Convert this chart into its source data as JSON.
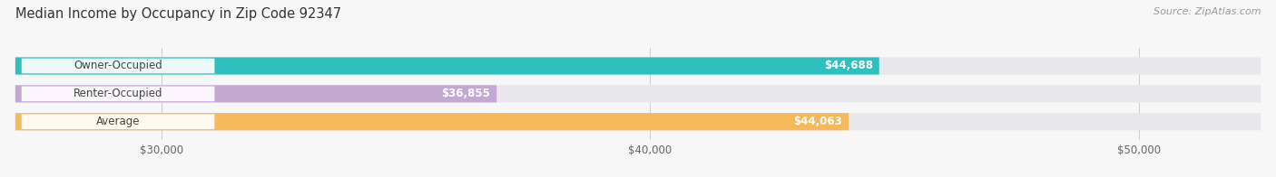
{
  "title": "Median Income by Occupancy in Zip Code 92347",
  "source": "Source: ZipAtlas.com",
  "categories": [
    "Owner-Occupied",
    "Renter-Occupied",
    "Average"
  ],
  "values": [
    44688,
    36855,
    44063
  ],
  "bar_colors": [
    "#2ebfbf",
    "#c4a8d4",
    "#f5b85a"
  ],
  "bar_bg_color": "#e8e8ec",
  "value_labels": [
    "$44,688",
    "$36,855",
    "$44,063"
  ],
  "xlim_min": 27000,
  "xlim_max": 52500,
  "xticks": [
    30000,
    40000,
    50000
  ],
  "xtick_labels": [
    "$30,000",
    "$40,000",
    "$50,000"
  ],
  "title_fontsize": 10.5,
  "source_fontsize": 8,
  "label_fontsize": 8.5,
  "value_fontsize": 8.5,
  "cat_fontsize": 8.5,
  "bar_height": 0.62,
  "figsize": [
    14.06,
    1.96
  ],
  "dpi": 100,
  "bg_color": "#f7f7f7"
}
